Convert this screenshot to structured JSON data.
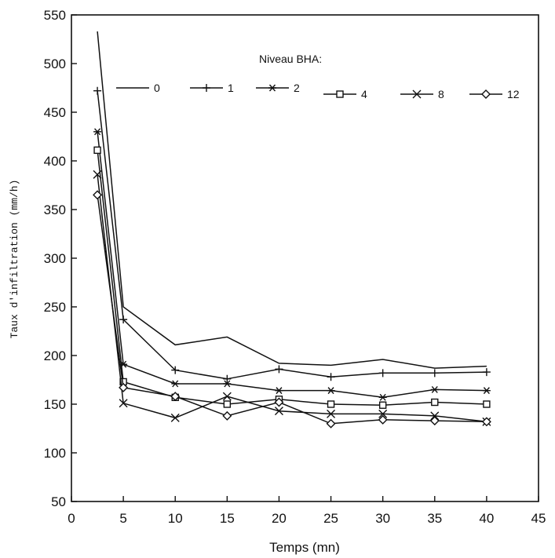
{
  "chart_data": {
    "type": "line",
    "xlabel": "Temps (mn)",
    "ylabel": "Taux d'infiltration (mm/h)",
    "xlim": [
      0,
      45
    ],
    "ylim": [
      50,
      550
    ],
    "xticks": [
      0,
      5,
      10,
      15,
      20,
      25,
      30,
      35,
      40,
      45
    ],
    "yticks": [
      50,
      100,
      150,
      200,
      250,
      300,
      350,
      400,
      450,
      500,
      550
    ],
    "grid": false,
    "legend_title": "Niveau BHA:",
    "legend_position": "top-right",
    "series": [
      {
        "name": "0",
        "marker": "none",
        "x": [
          2.5,
          5,
          10,
          15,
          20,
          25,
          30,
          35,
          40
        ],
        "y": [
          533,
          250,
          211,
          219,
          192,
          190,
          196,
          187,
          189
        ]
      },
      {
        "name": "1",
        "marker": "plus",
        "x": [
          2.5,
          5,
          10,
          15,
          20,
          25,
          30,
          35,
          40
        ],
        "y": [
          472,
          237,
          185,
          176,
          186,
          178,
          182,
          182,
          183
        ]
      },
      {
        "name": "2",
        "marker": "star",
        "x": [
          2.5,
          5,
          10,
          15,
          20,
          25,
          30,
          35,
          40
        ],
        "y": [
          430,
          191,
          171,
          171,
          164,
          164,
          157,
          165,
          164
        ]
      },
      {
        "name": "4",
        "marker": "square",
        "x": [
          2.5,
          5,
          10,
          15,
          20,
          25,
          30,
          35,
          40
        ],
        "y": [
          411,
          173,
          157,
          150,
          155,
          150,
          149,
          152,
          150
        ]
      },
      {
        "name": "8",
        "marker": "x",
        "x": [
          2.5,
          5,
          10,
          15,
          20,
          25,
          30,
          35,
          40
        ],
        "y": [
          386,
          151,
          136,
          158,
          143,
          140,
          140,
          138,
          132
        ]
      },
      {
        "name": "12",
        "marker": "diamond",
        "x": [
          2.5,
          5,
          10,
          15,
          20,
          25,
          30,
          35,
          40
        ],
        "y": [
          365,
          167,
          158,
          138,
          152,
          130,
          134,
          133,
          132
        ]
      }
    ]
  }
}
